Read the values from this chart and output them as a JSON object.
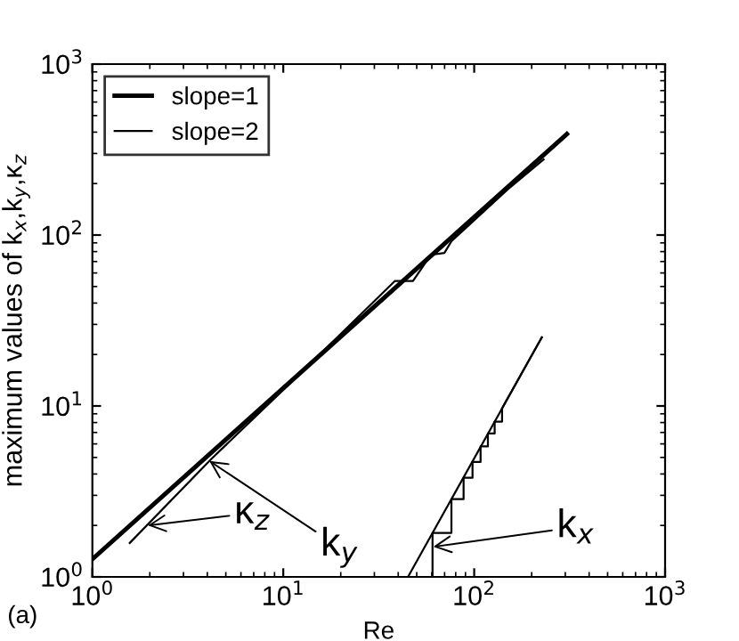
{
  "chart_data": {
    "type": "line",
    "xlabel": "Re",
    "ylabel": "maximum values of k$_{x}$,k$_{y}$,κ$_{z}$",
    "log": "xy",
    "xlim": [
      1,
      1000
    ],
    "ylim": [
      1,
      1000
    ],
    "xticks": [
      {
        "value": 1,
        "label": "10$^{0}$"
      },
      {
        "value": 10,
        "label": "10$^{1}$"
      },
      {
        "value": 100,
        "label": "10$^{2}$"
      },
      {
        "value": 1000,
        "label": "10$^{3}$"
      }
    ],
    "yticks": [
      {
        "value": 1,
        "label": "10$^{0}$"
      },
      {
        "value": 10,
        "label": "10$^{1}$"
      },
      {
        "value": 100,
        "label": "10$^{2}$"
      },
      {
        "value": 1000,
        "label": "10$^{3}$"
      }
    ],
    "grid": false,
    "legend": "top left",
    "marker": "none",
    "line_style": "solid",
    "series": [
      {
        "name": "slope=1",
        "color": "#000000",
        "x": [
          1,
          306
        ],
        "values": [
          1.27,
          390
        ]
      },
      {
        "name": "slope=2",
        "color": "#000000",
        "x": [
          45,
          226
        ],
        "values": [
          1,
          25.2
        ]
      },
      {
        "color": "#000000",
        "x": [
          1.57,
          4.2,
          10,
          38.5,
          47.8,
          59.3,
          69.8,
          76,
          150,
          231
        ],
        "values": [
          1.58,
          4.9,
          12.4,
          53.9,
          53.9,
          76.6,
          78.5,
          92,
          185,
          277
        ]
      },
      {
        "color": "#000000",
        "x": [
          60.5,
          60.5,
          76,
          76,
          88,
          88,
          98,
          98,
          108,
          108,
          118,
          118,
          128,
          128,
          140,
          140,
          226
        ],
        "values": [
          1,
          1.81,
          1.81,
          2.85,
          2.85,
          3.8,
          3.8,
          4.7,
          4.7,
          5.8,
          5.8,
          6.9,
          6.9,
          8.1,
          8.1,
          9.7,
          25.2
        ]
      }
    ],
    "annotations": [
      {
        "text": "κ$_{z}$",
        "x": 1.95,
        "y": 2.0
      },
      {
        "text": "k$_{y}$",
        "x": 4.1,
        "y": 4.77
      },
      {
        "text": "k$_{x}$",
        "x": 61,
        "y": 1.5
      },
      "(a)"
    ]
  }
}
